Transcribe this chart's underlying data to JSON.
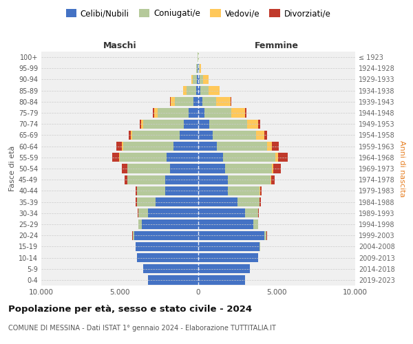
{
  "age_groups": [
    "0-4",
    "5-9",
    "10-14",
    "15-19",
    "20-24",
    "25-29",
    "30-34",
    "35-39",
    "40-44",
    "45-49",
    "50-54",
    "55-59",
    "60-64",
    "65-69",
    "70-74",
    "75-79",
    "80-84",
    "85-89",
    "90-94",
    "95-99",
    "100+"
  ],
  "birth_years": [
    "2019-2023",
    "2014-2018",
    "2009-2013",
    "2004-2008",
    "1999-2003",
    "1994-1998",
    "1989-1993",
    "1984-1988",
    "1979-1983",
    "1974-1978",
    "1969-1973",
    "1964-1968",
    "1959-1963",
    "1954-1958",
    "1949-1953",
    "1944-1948",
    "1939-1943",
    "1934-1938",
    "1929-1933",
    "1924-1928",
    "≤ 1923"
  ],
  "male": {
    "celibi": [
      3200,
      3500,
      3900,
      4000,
      4100,
      3600,
      3200,
      2700,
      2100,
      2100,
      1800,
      2000,
      1600,
      1200,
      900,
      600,
      300,
      150,
      100,
      50,
      20
    ],
    "coniugati": [
      0,
      0,
      0,
      10,
      80,
      200,
      600,
      1200,
      1800,
      2400,
      2700,
      3000,
      3200,
      3000,
      2600,
      2000,
      1200,
      600,
      250,
      60,
      10
    ],
    "vedovi": [
      0,
      0,
      0,
      0,
      5,
      5,
      5,
      5,
      5,
      10,
      20,
      30,
      50,
      100,
      150,
      200,
      250,
      200,
      100,
      30,
      5
    ],
    "divorziati": [
      0,
      0,
      0,
      0,
      5,
      10,
      50,
      80,
      100,
      200,
      350,
      450,
      350,
      150,
      100,
      80,
      50,
      20,
      10,
      5,
      0
    ]
  },
  "female": {
    "nubili": [
      3000,
      3300,
      3800,
      3900,
      4200,
      3500,
      3000,
      2500,
      1900,
      1900,
      1700,
      1600,
      1200,
      900,
      700,
      400,
      250,
      150,
      100,
      50,
      20
    ],
    "coniugate": [
      0,
      0,
      0,
      30,
      150,
      300,
      800,
      1400,
      2000,
      2700,
      3000,
      3300,
      3200,
      2800,
      2400,
      1700,
      900,
      500,
      200,
      50,
      10
    ],
    "vedove": [
      0,
      0,
      0,
      0,
      10,
      10,
      15,
      20,
      30,
      50,
      100,
      200,
      300,
      500,
      700,
      900,
      900,
      700,
      350,
      80,
      10
    ],
    "divorziate": [
      0,
      0,
      0,
      0,
      5,
      15,
      50,
      80,
      100,
      200,
      450,
      600,
      450,
      200,
      150,
      80,
      40,
      20,
      10,
      5,
      0
    ]
  },
  "colors": {
    "celibi_nubili": "#4472c4",
    "coniugati": "#b5c99a",
    "vedovi": "#ffc85a",
    "divorziati": "#c0392b"
  },
  "title": "Popolazione per età, sesso e stato civile - 2024",
  "subtitle": "COMUNE DI MESSINA - Dati ISTAT 1° gennaio 2024 - Elaborazione TUTTITALIA.IT",
  "xlabel_left": "Maschi",
  "xlabel_right": "Femmine",
  "ylabel_left": "Fasce di età",
  "ylabel_right": "Anni di nascita",
  "xlim": 10000,
  "xticks": [
    -10000,
    -5000,
    0,
    5000,
    10000
  ],
  "xticklabels": [
    "10.000",
    "5.000",
    "0",
    "5.000",
    "10.000"
  ],
  "legend_labels": [
    "Celibi/Nubili",
    "Coniugati/e",
    "Vedovi/e",
    "Divorziati/e"
  ],
  "background_color": "#ffffff",
  "plot_bg_color": "#f0f0f0"
}
